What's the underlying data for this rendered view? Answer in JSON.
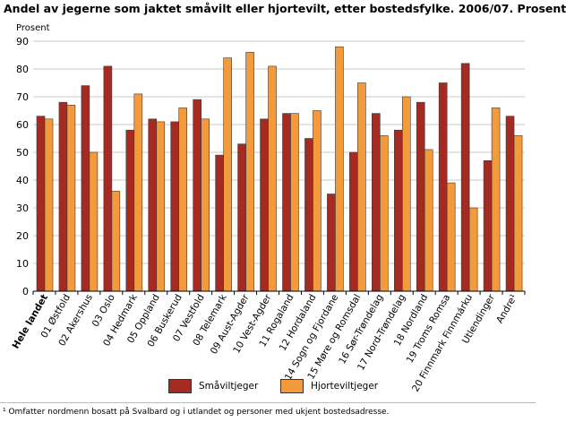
{
  "chart_data": {
    "type": "bar",
    "title": "Andel av jegerne som jaktet småvilt eller hjortevilt, etter bostedsfylke. 2006/07. Prosent",
    "ylabel": "Prosent",
    "xlabel": "",
    "ylim": [
      0,
      90
    ],
    "yticks": [
      0,
      10,
      20,
      30,
      40,
      50,
      60,
      70,
      80,
      90
    ],
    "grid": true,
    "legend_position": "bottom",
    "categories": [
      "Hele landet",
      "01 Østfold",
      "02 Akershus",
      "03 Oslo",
      "04 Hedmark",
      "05 Oppland",
      "06 Buskerud",
      "07 Vestfold",
      "08 Telemark",
      "09 Aust-Agder",
      "10 Vest-Agder",
      "11 Rogaland",
      "12 Hordaland",
      "14 Sogn og Fjordane",
      "15 Møre og Romsdal",
      "16 Sør-Trøndelag",
      "17 Nord-Trøndelag",
      "18 Nordland",
      "19 Troms Romsa",
      "20 Finnmark Finnmárku",
      "Utlendinger",
      "Andre¹"
    ],
    "series": [
      {
        "name": "Småviltjeger",
        "color": "#a52a22",
        "values": [
          63,
          68,
          74,
          81,
          58,
          62,
          61,
          69,
          49,
          53,
          62,
          64,
          55,
          35,
          50,
          64,
          58,
          68,
          75,
          82,
          47,
          63
        ]
      },
      {
        "name": "Hjorteviltjeger",
        "color": "#f39a3c",
        "values": [
          62,
          67,
          50,
          36,
          71,
          61,
          66,
          62,
          84,
          86,
          81,
          64,
          65,
          88,
          75,
          56,
          70,
          51,
          39,
          30,
          66,
          56
        ]
      }
    ]
  },
  "footnote": "¹ Omfatter nordmenn bosatt på Svalbard og i utlandet og personer med ukjent bostedsadresse."
}
